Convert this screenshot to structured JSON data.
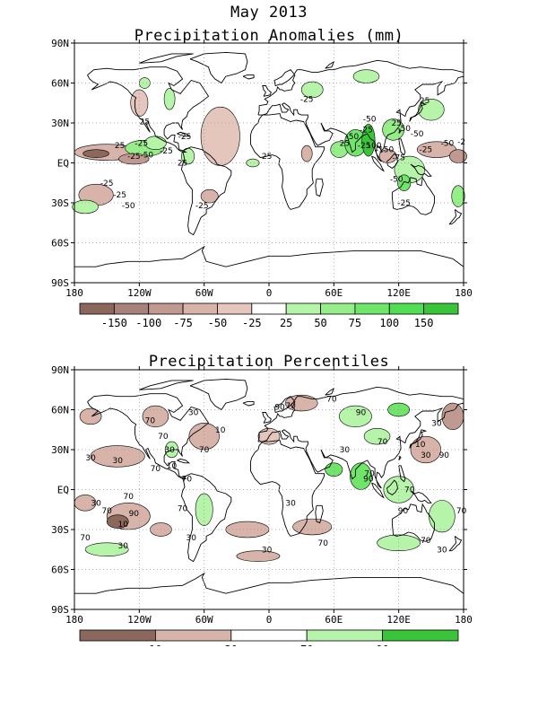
{
  "main_title": "May 2013",
  "colors": {
    "brown_dark": "#8c675c",
    "brown_mid": "#a6827a",
    "brown_light": "#c09a91",
    "brown_pale": "#d7b3a9",
    "brown_faint": "#e4c6bd",
    "green_faint": "#b6f5a9",
    "green_light": "#95ee88",
    "green_mid": "#6fe56a",
    "green_strong": "#52dd52",
    "green_dark": "#3ac43a",
    "land_outline": "#000000",
    "grid": "#999999",
    "white": "#ffffff"
  },
  "maps": [
    {
      "title": "Precipitation Anomalies (mm)",
      "lat_ticks": [
        "90N",
        "60N",
        "30N",
        "EQ",
        "30S",
        "60S",
        "90S"
      ],
      "lon_ticks": [
        "180",
        "120W",
        "60W",
        "0",
        "60E",
        "120E",
        "180"
      ],
      "colorbar": {
        "boxes": [
          "#8c675c",
          "#a6827a",
          "#c09a91",
          "#d7b3a9",
          "#e4c6bd",
          "#ffffff",
          "#b6f5a9",
          "#95ee88",
          "#6fe56a",
          "#52dd52",
          "#3ac43a"
        ],
        "labels": [
          "-150",
          "-100",
          "-75",
          "-50",
          "-25",
          "25",
          "50",
          "75",
          "100",
          "150"
        ]
      },
      "contour_labels": [
        {
          "text": "25",
          "lon": -138,
          "lat": 13
        },
        {
          "text": "-25",
          "lon": -118,
          "lat": 15
        },
        {
          "text": "-25",
          "lon": -125,
          "lat": 5
        },
        {
          "text": "-50",
          "lon": -113,
          "lat": 6
        },
        {
          "text": "-25",
          "lon": -150,
          "lat": -15
        },
        {
          "text": "-25",
          "lon": -138,
          "lat": -24
        },
        {
          "text": "-50",
          "lon": -130,
          "lat": -32
        },
        {
          "text": "-25",
          "lon": -95,
          "lat": 9
        },
        {
          "text": "25",
          "lon": -115,
          "lat": 31
        },
        {
          "text": "-25",
          "lon": -78,
          "lat": 20
        },
        {
          "text": "25",
          "lon": -80,
          "lat": 0
        },
        {
          "text": "-25",
          "lon": -62,
          "lat": -32
        },
        {
          "text": "25",
          "lon": -2,
          "lat": 5
        },
        {
          "text": "-25",
          "lon": 35,
          "lat": 48
        },
        {
          "text": "25",
          "lon": 70,
          "lat": 15
        },
        {
          "text": "-50",
          "lon": 77,
          "lat": 20
        },
        {
          "text": "-25",
          "lon": 88,
          "lat": 13
        },
        {
          "text": "100",
          "lon": 97,
          "lat": 13
        },
        {
          "text": "-150",
          "lon": 107,
          "lat": 10
        },
        {
          "text": "-75",
          "lon": 120,
          "lat": 4
        },
        {
          "text": "-50",
          "lon": 118,
          "lat": -12
        },
        {
          "text": "-50",
          "lon": 125,
          "lat": 26
        },
        {
          "text": "-50",
          "lon": 137,
          "lat": 22
        },
        {
          "text": "25",
          "lon": 144,
          "lat": 47
        },
        {
          "text": "-25",
          "lon": 145,
          "lat": 10
        },
        {
          "text": "-50",
          "lon": 165,
          "lat": 15
        },
        {
          "text": "-2",
          "lon": 178,
          "lat": 16
        },
        {
          "text": "-25",
          "lon": 125,
          "lat": -30
        },
        {
          "text": "25",
          "lon": 118,
          "lat": 30
        },
        {
          "text": "-25",
          "lon": 90,
          "lat": 25
        },
        {
          "text": "-50",
          "lon": 93,
          "lat": 33
        }
      ]
    },
    {
      "title": "Precipitation Percentiles",
      "lat_ticks": [
        "90N",
        "60N",
        "30N",
        "EQ",
        "30S",
        "60S",
        "90S"
      ],
      "lon_ticks": [
        "180",
        "120W",
        "60W",
        "0",
        "60E",
        "120E",
        "180"
      ],
      "colorbar": {
        "boxes": [
          "#8c675c",
          "#d7b3a9",
          "#ffffff",
          "#b6f5a9",
          "#3ac43a"
        ],
        "labels": [
          "10",
          "30",
          "70",
          "90"
        ]
      },
      "contour_labels": [
        {
          "text": "70",
          "lon": -110,
          "lat": 52
        },
        {
          "text": "30",
          "lon": -92,
          "lat": 30
        },
        {
          "text": "70",
          "lon": -98,
          "lat": 40
        },
        {
          "text": "10",
          "lon": -90,
          "lat": 18
        },
        {
          "text": "30",
          "lon": -165,
          "lat": 24
        },
        {
          "text": "30",
          "lon": -140,
          "lat": 22
        },
        {
          "text": "70",
          "lon": -105,
          "lat": 16
        },
        {
          "text": "70",
          "lon": -76,
          "lat": 8
        },
        {
          "text": "70",
          "lon": -130,
          "lat": -5
        },
        {
          "text": "30",
          "lon": -160,
          "lat": -10
        },
        {
          "text": "70",
          "lon": -150,
          "lat": -16
        },
        {
          "text": "90",
          "lon": -125,
          "lat": -18
        },
        {
          "text": "10",
          "lon": -135,
          "lat": -26
        },
        {
          "text": "70",
          "lon": -170,
          "lat": -36
        },
        {
          "text": "30",
          "lon": -135,
          "lat": -42
        },
        {
          "text": "70",
          "lon": -80,
          "lat": -14
        },
        {
          "text": "30",
          "lon": -72,
          "lat": -36
        },
        {
          "text": "30",
          "lon": -70,
          "lat": 58
        },
        {
          "text": "30",
          "lon": -2,
          "lat": -45
        },
        {
          "text": "30",
          "lon": 20,
          "lat": -10
        },
        {
          "text": "70",
          "lon": 20,
          "lat": 63
        },
        {
          "text": "90",
          "lon": 10,
          "lat": 62
        },
        {
          "text": "70",
          "lon": 58,
          "lat": 68
        },
        {
          "text": "90",
          "lon": 85,
          "lat": 58
        },
        {
          "text": "70",
          "lon": 50,
          "lat": -40
        },
        {
          "text": "70",
          "lon": 105,
          "lat": 36
        },
        {
          "text": "70",
          "lon": 93,
          "lat": 12
        },
        {
          "text": "90",
          "lon": 124,
          "lat": -16
        },
        {
          "text": "70",
          "lon": 130,
          "lat": 0
        },
        {
          "text": "10",
          "lon": 140,
          "lat": 34
        },
        {
          "text": "30",
          "lon": 145,
          "lat": 26
        },
        {
          "text": "90",
          "lon": 162,
          "lat": 26
        },
        {
          "text": "70",
          "lon": 178,
          "lat": -16
        },
        {
          "text": "30",
          "lon": 160,
          "lat": -45
        },
        {
          "text": "70",
          "lon": 145,
          "lat": -38
        },
        {
          "text": "30",
          "lon": 155,
          "lat": 50
        },
        {
          "text": "10",
          "lon": -45,
          "lat": 45
        },
        {
          "text": "70",
          "lon": -60,
          "lat": 30
        },
        {
          "text": "30",
          "lon": 70,
          "lat": 30
        },
        {
          "text": "90",
          "lon": 92,
          "lat": 8
        }
      ]
    }
  ]
}
